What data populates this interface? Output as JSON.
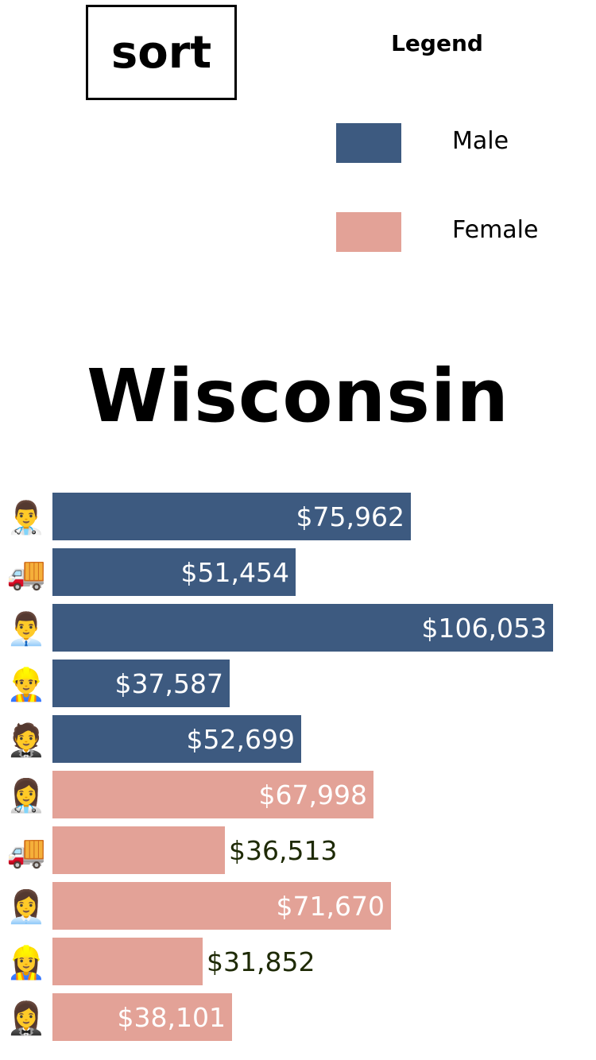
{
  "controls": {
    "sort_label": "sort"
  },
  "legend": {
    "title": "Legend",
    "entries": [
      {
        "label": "Male",
        "color": "#3d5a80"
      },
      {
        "label": "Female",
        "color": "#e3a297"
      }
    ]
  },
  "page": {
    "title": "Wisconsin"
  },
  "chart_data": {
    "type": "bar",
    "orientation": "horizontal",
    "categories": [
      {
        "icon": "👨‍⚕️",
        "icon_name": "male-health-worker-icon",
        "group": "Male"
      },
      {
        "icon": "🚚",
        "icon_name": "delivery-truck-icon",
        "group": "Male"
      },
      {
        "icon": "👨‍💼",
        "icon_name": "male-office-worker-icon",
        "group": "Male"
      },
      {
        "icon": "👷‍♂️",
        "icon_name": "male-construction-worker-icon",
        "group": "Male"
      },
      {
        "icon": "🤵",
        "icon_name": "male-tuxedo-icon",
        "group": "Male"
      },
      {
        "icon": "👩‍⚕️",
        "icon_name": "female-health-worker-icon",
        "group": "Female"
      },
      {
        "icon": "🚚",
        "icon_name": "delivery-truck-icon",
        "group": "Female"
      },
      {
        "icon": "👩‍💼",
        "icon_name": "female-office-worker-icon",
        "group": "Female"
      },
      {
        "icon": "👷‍♀️",
        "icon_name": "female-construction-worker-icon",
        "group": "Female"
      },
      {
        "icon": "🤵‍♀️",
        "icon_name": "female-tuxedo-icon",
        "group": "Female"
      }
    ],
    "values": [
      75962,
      51454,
      106053,
      37587,
      52699,
      67998,
      36513,
      71670,
      31852,
      38101
    ],
    "labels": [
      "$75,962",
      "$51,454",
      "$106,053",
      "$37,587",
      "$52,699",
      "$67,998",
      "$36,513",
      "$71,670",
      "$31,852",
      "$38,101"
    ],
    "xlim": [
      0,
      106053
    ],
    "colors": {
      "Male": "#3d5a80",
      "Female": "#e3a297"
    },
    "grid": false
  }
}
